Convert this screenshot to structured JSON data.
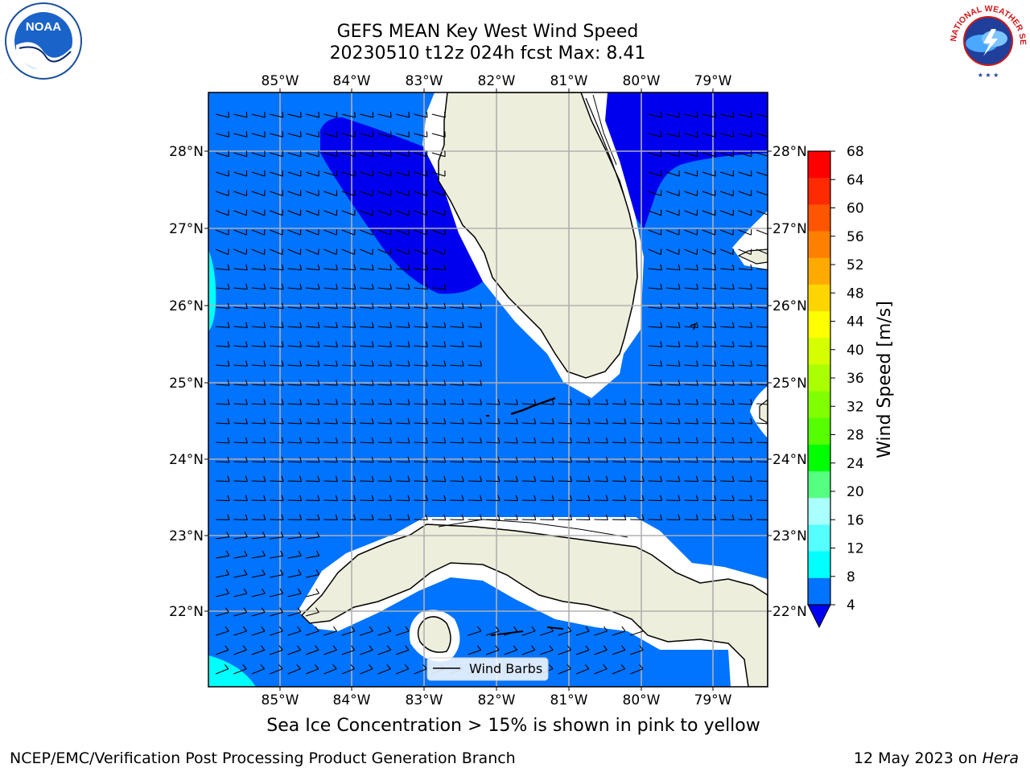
{
  "title": {
    "line1": "GEFS MEAN Key West Wind Speed",
    "line2": "20230510 t12z 024h fcst   Max: 8.41"
  },
  "map": {
    "lon_ticks": [
      "85°W",
      "84°W",
      "83°W",
      "82°W",
      "81°W",
      "80°W",
      "79°W"
    ],
    "lat_ticks": [
      "28°N",
      "27°N",
      "26°N",
      "25°N",
      "24°N",
      "23°N",
      "22°N"
    ],
    "legend_label": "Wind Barbs",
    "colors": {
      "ocean_4_8": "#0073ff",
      "ocean_0_4": "#0000ee",
      "ocean_8_12": "#00ffff",
      "land": "#eeeedc",
      "grid": "#b0b0b0"
    }
  },
  "colorbar": {
    "label": "Wind Speed [m/s]",
    "ticks": [
      "68",
      "64",
      "60",
      "56",
      "52",
      "48",
      "44",
      "40",
      "36",
      "32",
      "28",
      "24",
      "20",
      "16",
      "12",
      "8",
      "4"
    ],
    "colors": [
      "#ff0000",
      "#ff2a00",
      "#ff5500",
      "#ff8000",
      "#ffaa00",
      "#ffd500",
      "#ffff00",
      "#d5ff00",
      "#aaff00",
      "#80ff00",
      "#55ff00",
      "#00ff00",
      "#55ff80",
      "#aaffff",
      "#55ffff",
      "#00ffff",
      "#0073ff"
    ],
    "under_color": "#0000ee"
  },
  "ice_note": "Sea Ice Concentration > 15% is shown in pink to yellow",
  "footer": {
    "left": "NCEP/EMC/Verification Post Processing Product Generation Branch",
    "right_prefix": "12 May 2023 on ",
    "right_host": "Hera"
  },
  "logos": {
    "noaa_text": "NOAA",
    "nws_text": "NATIONAL WEATHER SERVICE"
  }
}
